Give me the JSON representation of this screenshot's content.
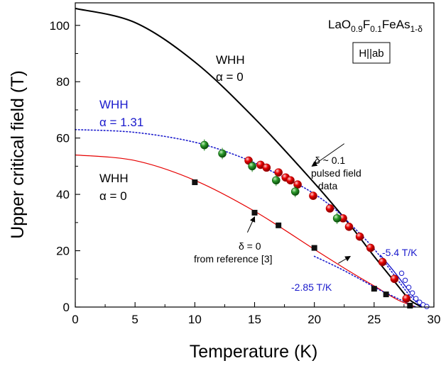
{
  "chart_data": {
    "type": "scatter",
    "xlabel": "Temperature (K)",
    "ylabel": "Upper critical field (T)",
    "xlim": [
      0,
      30
    ],
    "ylim": [
      0,
      108
    ],
    "xticks": [
      0,
      5,
      10,
      15,
      20,
      25,
      30
    ],
    "yticks": [
      0,
      20,
      40,
      60,
      80,
      100
    ],
    "grid": false,
    "colors": {
      "black": "#000000",
      "blue": "#1a1acc",
      "red": "#e60000",
      "green": "#1f8a1f"
    },
    "compound": {
      "base": "LaO",
      "s1": "0.9",
      "mid1": "F",
      "s2": "0.1",
      "mid2": "FeAs",
      "s3": "1-δ"
    },
    "boxed_label": "H||ab",
    "annotations": {
      "whh_black_top": {
        "l1": "WHH",
        "l2": "α = 0"
      },
      "whh_blue": {
        "l1": "WHH",
        "l2": "α = 1.31"
      },
      "whh_black_low": {
        "l1": "WHH",
        "l2": "α = 0"
      },
      "delta01": {
        "l1": "δ ~ 0.1",
        "l2": "pulsed field",
        "l3": "data"
      },
      "delta0": {
        "l1": "δ = 0",
        "l2": "from reference [3]"
      },
      "slope_blue_1": "-5.4 T/K",
      "slope_blue_2": "-2.85 T/K"
    },
    "series": [
      {
        "marker": "circle-red",
        "x": [
          14.5,
          15.5,
          16.0,
          17.0,
          17.6,
          18.0,
          18.6,
          19.9,
          21.3,
          22.4,
          22.9,
          23.8,
          24.7,
          25.7,
          26.7,
          27.7
        ],
        "y": [
          52.0,
          50.5,
          49.5,
          47.8,
          46.0,
          45.0,
          43.5,
          39.5,
          35.0,
          31.5,
          28.5,
          25.0,
          21.0,
          16.0,
          10.0,
          3.0
        ]
      },
      {
        "marker": "circle-green",
        "x": [
          10.8,
          12.3,
          14.8,
          16.8,
          18.4,
          21.9
        ],
        "y": [
          57.5,
          54.5,
          50.0,
          45.0,
          41.0,
          31.5
        ]
      },
      {
        "marker": "square-black",
        "x": [
          10.0,
          15.0,
          17.0,
          20.0,
          25.0,
          26.0,
          28.0
        ],
        "y": [
          44.3,
          33.5,
          29.0,
          21.0,
          6.5,
          4.5,
          0.5
        ]
      },
      {
        "marker": "circle-open-blue",
        "x": [
          27.3,
          27.6,
          27.9,
          28.2,
          28.5,
          28.8,
          29.1,
          29.4
        ],
        "y": [
          12.0,
          9.5,
          7.0,
          5.0,
          3.0,
          1.7,
          0.8,
          0.2
        ]
      }
    ],
    "curves": [
      {
        "style": "solid-black",
        "x": [
          0,
          5,
          10,
          15,
          20,
          23,
          25,
          27,
          28,
          29.0
        ],
        "y": [
          106,
          101,
          87,
          67,
          44,
          29,
          18,
          7.5,
          2.5,
          0
        ]
      },
      {
        "style": "dotted-blue",
        "x": [
          0,
          5,
          10,
          14,
          17,
          19.5,
          21.5,
          23,
          24.5,
          25.5,
          27,
          28,
          29.0
        ],
        "y": [
          63,
          62,
          58.5,
          53,
          47,
          41.5,
          35.5,
          29.5,
          23,
          18,
          9.5,
          4,
          0
        ]
      },
      {
        "style": "solid-red",
        "x": [
          0,
          5,
          10,
          15,
          20,
          23,
          25,
          27,
          28.5
        ],
        "y": [
          54,
          52,
          45,
          34,
          20.5,
          12.5,
          7.5,
          2.5,
          0
        ]
      },
      {
        "style": "solid-blue",
        "x": [
          25.5,
          26.5,
          27.5,
          28.3,
          29.0
        ],
        "y": [
          18.5,
          13.5,
          8,
          3.5,
          0
        ]
      },
      {
        "style": "dotted-blue",
        "x": [
          20.0,
          22.0,
          24.0,
          25.5,
          27.0,
          28.5
        ],
        "y": [
          18.0,
          14.0,
          9.5,
          6.0,
          3.0,
          0.0
        ]
      }
    ],
    "arrows": [
      {
        "from": [
          22.5,
          58.0
        ],
        "to": [
          19.8,
          50.0
        ]
      },
      {
        "from": [
          14.4,
          26.5
        ],
        "to": [
          15.0,
          32.0
        ]
      },
      {
        "from": [
          22.0,
          15.5
        ],
        "to": [
          23.0,
          18.0
        ]
      }
    ]
  }
}
